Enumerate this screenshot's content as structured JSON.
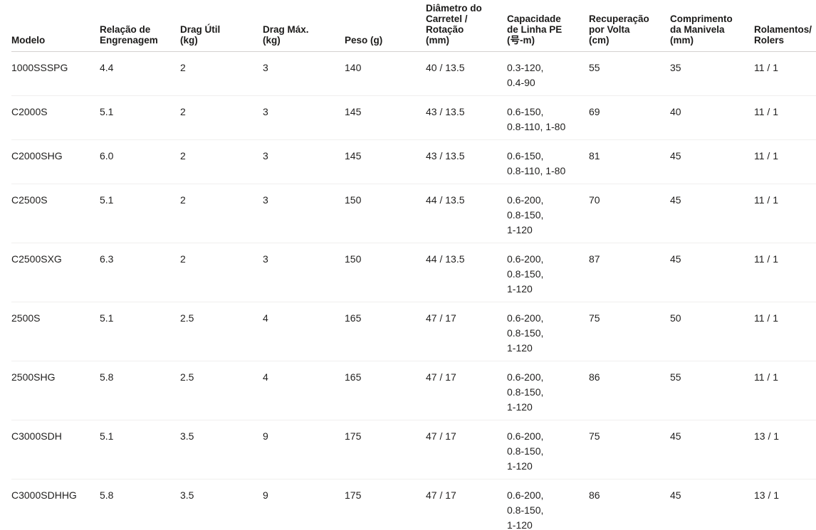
{
  "colors": {
    "bg": "#ffffff",
    "text": "#201f1e",
    "header_text": "#1b1a19",
    "header_border": "#d4d2d0",
    "row_border": "#f0efee"
  },
  "table": {
    "columns": [
      {
        "id": "modelo",
        "label": "Modelo"
      },
      {
        "id": "relacao",
        "label": "Relação de\nEngrenagem"
      },
      {
        "id": "drag-util",
        "label": "Drag Útil\n(kg)"
      },
      {
        "id": "drag-max",
        "label": "Drag Máx.\n(kg)"
      },
      {
        "id": "peso",
        "label": "Peso (g)"
      },
      {
        "id": "diametro",
        "label": "Diâmetro do\nCarretel /\nRotação\n(mm)"
      },
      {
        "id": "capacidade",
        "label": "Capacidade\nde Linha PE\n(号-m)"
      },
      {
        "id": "recuperacao",
        "label": "Recuperação\npor Volta\n(cm)"
      },
      {
        "id": "comprimento",
        "label": "Comprimento\nda Manivela\n(mm)"
      },
      {
        "id": "rolamentos",
        "label": "Rolamentos/\nRolers"
      }
    ],
    "rows": [
      [
        "1000SSSPG",
        "4.4",
        "2",
        "3",
        "140",
        "40 / 13.5",
        "0.3-120,\n0.4-90",
        "55",
        "35",
        "11 / 1"
      ],
      [
        "C2000S",
        "5.1",
        "2",
        "3",
        "145",
        "43 / 13.5",
        "0.6-150,\n0.8-110, 1-80",
        "69",
        "40",
        "11 / 1"
      ],
      [
        "C2000SHG",
        "6.0",
        "2",
        "3",
        "145",
        "43 / 13.5",
        "0.6-150,\n0.8-110, 1-80",
        "81",
        "45",
        "11 / 1"
      ],
      [
        "C2500S",
        "5.1",
        "2",
        "3",
        "150",
        "44 / 13.5",
        "0.6-200,\n0.8-150,\n1-120",
        "70",
        "45",
        "11 / 1"
      ],
      [
        "C2500SXG",
        "6.3",
        "2",
        "3",
        "150",
        "44 / 13.5",
        "0.6-200,\n0.8-150,\n1-120",
        "87",
        "45",
        "11 / 1"
      ],
      [
        "2500S",
        "5.1",
        "2.5",
        "4",
        "165",
        "47 / 17",
        "0.6-200,\n0.8-150,\n1-120",
        "75",
        "50",
        "11 / 1"
      ],
      [
        "2500SHG",
        "5.8",
        "2.5",
        "4",
        "165",
        "47 / 17",
        "0.6-200,\n0.8-150,\n1-120",
        "86",
        "55",
        "11 / 1"
      ],
      [
        "C3000SDH",
        "5.1",
        "3.5",
        "9",
        "175",
        "47 / 17",
        "0.6-200,\n0.8-150,\n1-120",
        "75",
        "45",
        "13 / 1"
      ],
      [
        "C3000SDHHG",
        "5.8",
        "3.5",
        "9",
        "175",
        "47 / 17",
        "0.6-200,\n0.8-150,\n1-120",
        "86",
        "45",
        "13 / 1"
      ]
    ]
  }
}
